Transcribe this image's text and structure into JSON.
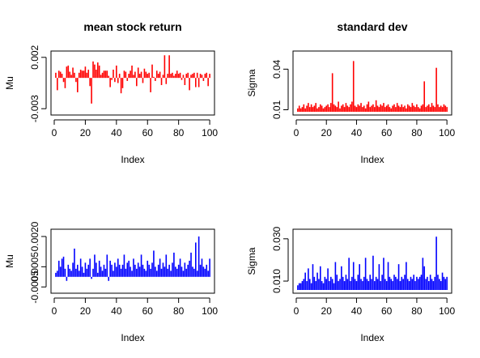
{
  "chart_data": [
    {
      "type": "bar",
      "title": "mean stock return",
      "xlabel": "Index",
      "ylabel": "Mu",
      "color": "#ff0000",
      "x_ticks": [
        0,
        20,
        40,
        60,
        80,
        100
      ],
      "y_ticks": [
        -0.003,
        0.002
      ],
      "y_tick_labels": [
        "-0.003",
        "0.002"
      ],
      "x_range": [
        0,
        101
      ],
      "y_range": [
        -0.0033,
        0.0023
      ],
      "x": [
        1,
        2,
        3,
        4,
        5,
        6,
        7,
        8,
        9,
        10,
        11,
        12,
        13,
        14,
        15,
        16,
        17,
        18,
        19,
        20,
        21,
        22,
        23,
        24,
        25,
        26,
        27,
        28,
        29,
        30,
        31,
        32,
        33,
        34,
        35,
        36,
        37,
        38,
        39,
        40,
        41,
        42,
        43,
        44,
        45,
        46,
        47,
        48,
        49,
        50,
        51,
        52,
        53,
        54,
        55,
        56,
        57,
        58,
        59,
        60,
        61,
        62,
        63,
        64,
        65,
        66,
        67,
        68,
        69,
        70,
        71,
        72,
        73,
        74,
        75,
        76,
        77,
        78,
        79,
        80,
        81,
        82,
        83,
        84,
        85,
        86,
        87,
        88,
        89,
        90,
        91,
        92,
        93,
        94,
        95,
        96,
        97,
        98,
        99,
        100
      ],
      "values": [
        0.0005,
        -0.0012,
        0.0007,
        0.0006,
        0.0004,
        -0.0004,
        -0.001,
        0.0011,
        0.0012,
        0.0006,
        0.0003,
        0.001,
        0.0005,
        -0.0004,
        -0.0014,
        0.0005,
        0.0008,
        0.0007,
        0.0007,
        0.0011,
        0.0005,
        0.0008,
        -0.0008,
        -0.0025,
        0.0016,
        0.0013,
        0.0008,
        0.0015,
        0.0012,
        0.0003,
        0.0005,
        0.0007,
        0.0007,
        0.0007,
        0.0002,
        -0.0009,
        -0.0002,
        0.0008,
        -0.0004,
        0.0012,
        -0.0005,
        0.0004,
        -0.0015,
        -0.001,
        0.0007,
        0.0006,
        -0.0003,
        0.0004,
        0.0007,
        0.0012,
        0.0003,
        0.0006,
        -0.0008,
        0.001,
        0.0004,
        0.0006,
        -0.0005,
        0.0009,
        0.0006,
        0.0004,
        0.0005,
        -0.0014,
        0.0013,
        0.0001,
        -0.0003,
        0.0007,
        0.0004,
        0.0006,
        -0.0007,
        0.0003,
        0.0022,
        -0.0006,
        0.0004,
        0.0022,
        0.0004,
        0.0005,
        0.0002,
        0.0004,
        0.0007,
        0.0004,
        0.0005,
        -0.0002,
        0.0003,
        -0.0007,
        0.0004,
        0.0005,
        -0.0012,
        0.0003,
        0.0004,
        0.0005,
        -0.0009,
        0.0005,
        -0.0009,
        0.0004,
        0.0003,
        -0.0003,
        0.0004,
        0.0005,
        -0.0008,
        0.0004
      ]
    },
    {
      "type": "bar",
      "title": "standard dev",
      "xlabel": "Index",
      "ylabel": "Sigma",
      "color": "#ff0000",
      "x_ticks": [
        0,
        20,
        40,
        60,
        80,
        100
      ],
      "y_ticks": [
        0.01,
        0.04
      ],
      "y_tick_labels": [
        "0.01",
        "0.04"
      ],
      "x_range": [
        0,
        101
      ],
      "y_range": [
        0.0085,
        0.051
      ],
      "x": [
        1,
        2,
        3,
        4,
        5,
        6,
        7,
        8,
        9,
        10,
        11,
        12,
        13,
        14,
        15,
        16,
        17,
        18,
        19,
        20,
        21,
        22,
        23,
        24,
        25,
        26,
        27,
        28,
        29,
        30,
        31,
        32,
        33,
        34,
        35,
        36,
        37,
        38,
        39,
        40,
        41,
        42,
        43,
        44,
        45,
        46,
        47,
        48,
        49,
        50,
        51,
        52,
        53,
        54,
        55,
        56,
        57,
        58,
        59,
        60,
        61,
        62,
        63,
        64,
        65,
        66,
        67,
        68,
        69,
        70,
        71,
        72,
        73,
        74,
        75,
        76,
        77,
        78,
        79,
        80,
        81,
        82,
        83,
        84,
        85,
        86,
        87,
        88,
        89,
        90,
        91,
        92,
        93,
        94,
        95,
        96,
        97,
        98,
        99,
        100
      ],
      "values": [
        0.011,
        0.013,
        0.011,
        0.012,
        0.014,
        0.011,
        0.013,
        0.015,
        0.012,
        0.014,
        0.012,
        0.013,
        0.015,
        0.011,
        0.012,
        0.014,
        0.013,
        0.011,
        0.012,
        0.013,
        0.014,
        0.012,
        0.015,
        0.037,
        0.014,
        0.013,
        0.012,
        0.016,
        0.011,
        0.013,
        0.014,
        0.012,
        0.015,
        0.013,
        0.012,
        0.014,
        0.016,
        0.046,
        0.013,
        0.012,
        0.014,
        0.013,
        0.015,
        0.012,
        0.013,
        0.011,
        0.014,
        0.016,
        0.012,
        0.013,
        0.014,
        0.012,
        0.017,
        0.013,
        0.012,
        0.014,
        0.013,
        0.015,
        0.012,
        0.013,
        0.014,
        0.012,
        0.011,
        0.013,
        0.014,
        0.012,
        0.015,
        0.013,
        0.012,
        0.014,
        0.012,
        0.013,
        0.011,
        0.014,
        0.013,
        0.012,
        0.015,
        0.013,
        0.012,
        0.014,
        0.012,
        0.011,
        0.013,
        0.014,
        0.031,
        0.012,
        0.013,
        0.014,
        0.012,
        0.015,
        0.013,
        0.012,
        0.041,
        0.014,
        0.012,
        0.013,
        0.012,
        0.014,
        0.013,
        0.012
      ]
    },
    {
      "type": "bar",
      "title": "",
      "xlabel": "Index",
      "ylabel": "Mu",
      "color": "#0000ff",
      "x_ticks": [
        0,
        20,
        40,
        60,
        80,
        100
      ],
      "y_ticks": [
        -0.0005,
        0.0005,
        0.002
      ],
      "y_tick_labels": [
        "-0.0005",
        "0.0005",
        "0.0020"
      ],
      "x_range": [
        0,
        101
      ],
      "y_range": [
        -0.00065,
        0.0022
      ],
      "x": [
        1,
        2,
        3,
        4,
        5,
        6,
        7,
        8,
        9,
        10,
        11,
        12,
        13,
        14,
        15,
        16,
        17,
        18,
        19,
        20,
        21,
        22,
        23,
        24,
        25,
        26,
        27,
        28,
        29,
        30,
        31,
        32,
        33,
        34,
        35,
        36,
        37,
        38,
        39,
        40,
        41,
        42,
        43,
        44,
        45,
        46,
        47,
        48,
        49,
        50,
        51,
        52,
        53,
        54,
        55,
        56,
        57,
        58,
        59,
        60,
        61,
        62,
        63,
        64,
        65,
        66,
        67,
        68,
        69,
        70,
        71,
        72,
        73,
        74,
        75,
        76,
        77,
        78,
        79,
        80,
        81,
        82,
        83,
        84,
        85,
        86,
        87,
        88,
        89,
        90,
        91,
        92,
        93,
        94,
        95,
        96,
        97,
        98,
        99,
        100
      ],
      "values": [
        0.0002,
        0.0003,
        0.0008,
        0.0005,
        0.0009,
        0.001,
        0.0004,
        -0.0002,
        0.0006,
        0.0004,
        0.0003,
        0.0007,
        0.0014,
        0.0004,
        0.0006,
        0.0003,
        0.0009,
        0.0005,
        0.0002,
        0.0007,
        0.0004,
        0.0006,
        0.0009,
        -0.0001,
        0.0004,
        0.0011,
        0.0007,
        0.0002,
        0.0008,
        0.0005,
        0.0003,
        0.0006,
        0.0004,
        0.0011,
        -0.0002,
        0.0008,
        0.0006,
        0.0003,
        0.0007,
        0.0005,
        0.0009,
        0.0006,
        0.0004,
        0.0006,
        0.0011,
        0.0004,
        0.0007,
        0.0008,
        0.0005,
        0.0003,
        0.0009,
        0.0006,
        0.0004,
        0.0007,
        0.0005,
        0.0011,
        0.0006,
        0.0004,
        0.0003,
        0.0008,
        0.0006,
        0.0004,
        0.0007,
        0.0013,
        0.0005,
        0.0003,
        0.0006,
        0.0009,
        0.0004,
        0.0007,
        0.0005,
        0.0011,
        0.0004,
        0.0006,
        0.0003,
        0.0007,
        0.0012,
        0.0005,
        0.0004,
        0.0006,
        0.0009,
        0.0005,
        0.0003,
        0.0007,
        0.0004,
        0.0006,
        0.0008,
        0.0012,
        0.0005,
        0.0004,
        0.0017,
        0.0003,
        0.002,
        0.0006,
        0.0009,
        0.0005,
        0.0004,
        0.0006,
        0.0003,
        0.0009
      ]
    },
    {
      "type": "bar",
      "title": "",
      "xlabel": "Index",
      "ylabel": "Sigma",
      "color": "#0000ff",
      "x_ticks": [
        0,
        20,
        40,
        60,
        80,
        100
      ],
      "y_ticks": [
        0.01,
        0.03
      ],
      "y_tick_labels": [
        "0.010",
        "0.030"
      ],
      "x_range": [
        0,
        101
      ],
      "y_range": [
        0.0058,
        0.033
      ],
      "x": [
        1,
        2,
        3,
        4,
        5,
        6,
        7,
        8,
        9,
        10,
        11,
        12,
        13,
        14,
        15,
        16,
        17,
        18,
        19,
        20,
        21,
        22,
        23,
        24,
        25,
        26,
        27,
        28,
        29,
        30,
        31,
        32,
        33,
        34,
        35,
        36,
        37,
        38,
        39,
        40,
        41,
        42,
        43,
        44,
        45,
        46,
        47,
        48,
        49,
        50,
        51,
        52,
        53,
        54,
        55,
        56,
        57,
        58,
        59,
        60,
        61,
        62,
        63,
        64,
        65,
        66,
        67,
        68,
        69,
        70,
        71,
        72,
        73,
        74,
        75,
        76,
        77,
        78,
        79,
        80,
        81,
        82,
        83,
        84,
        85,
        86,
        87,
        88,
        89,
        90,
        91,
        92,
        93,
        94,
        95,
        96,
        97,
        98,
        99,
        100
      ],
      "values": [
        0.008,
        0.009,
        0.009,
        0.01,
        0.011,
        0.014,
        0.01,
        0.016,
        0.011,
        0.009,
        0.018,
        0.012,
        0.01,
        0.014,
        0.011,
        0.017,
        0.01,
        0.009,
        0.012,
        0.011,
        0.016,
        0.01,
        0.012,
        0.011,
        0.009,
        0.019,
        0.013,
        0.01,
        0.011,
        0.017,
        0.012,
        0.01,
        0.013,
        0.011,
        0.021,
        0.01,
        0.012,
        0.019,
        0.011,
        0.01,
        0.013,
        0.018,
        0.011,
        0.01,
        0.012,
        0.021,
        0.011,
        0.01,
        0.013,
        0.011,
        0.022,
        0.01,
        0.012,
        0.011,
        0.018,
        0.01,
        0.013,
        0.021,
        0.011,
        0.01,
        0.019,
        0.012,
        0.011,
        0.01,
        0.013,
        0.012,
        0.011,
        0.018,
        0.01,
        0.012,
        0.011,
        0.013,
        0.019,
        0.011,
        0.01,
        0.012,
        0.011,
        0.013,
        0.01,
        0.012,
        0.011,
        0.012,
        0.013,
        0.021,
        0.017,
        0.011,
        0.012,
        0.01,
        0.013,
        0.011,
        0.01,
        0.012,
        0.031,
        0.013,
        0.011,
        0.01,
        0.014,
        0.012,
        0.011,
        0.012
      ]
    }
  ]
}
